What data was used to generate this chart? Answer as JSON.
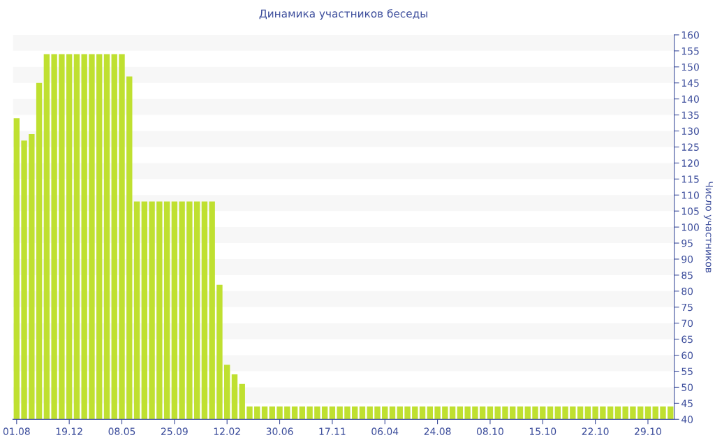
{
  "chart_data": {
    "type": "bar",
    "title": "Динамика участников беседы",
    "ylabel": "Число участников",
    "categories": [
      "01.08",
      null,
      null,
      null,
      null,
      null,
      null,
      "19.12",
      null,
      null,
      null,
      null,
      null,
      null,
      "08.05",
      null,
      null,
      null,
      null,
      null,
      null,
      "25.09",
      null,
      null,
      null,
      null,
      null,
      null,
      "12.02",
      null,
      null,
      null,
      null,
      null,
      null,
      "30.06",
      null,
      null,
      null,
      null,
      null,
      null,
      "17.11",
      null,
      null,
      null,
      null,
      null,
      null,
      "06.04",
      null,
      null,
      null,
      null,
      null,
      null,
      "24.08",
      null,
      null,
      null,
      null,
      null,
      null,
      "08.10",
      null,
      null,
      null,
      null,
      null,
      null,
      "15.10",
      null,
      null,
      null,
      null,
      null,
      null,
      "22.10",
      null,
      null,
      null,
      null,
      null,
      null,
      "29.10",
      null,
      null,
      null
    ],
    "values": [
      134,
      127,
      129,
      145,
      154,
      154,
      154,
      154,
      154,
      154,
      154,
      154,
      154,
      154,
      154,
      147,
      108,
      108,
      108,
      108,
      108,
      108,
      108,
      108,
      108,
      108,
      108,
      82,
      57,
      54,
      51,
      44,
      44,
      44,
      44,
      44,
      44,
      44,
      44,
      44,
      44,
      44,
      44,
      44,
      44,
      44,
      44,
      44,
      44,
      44,
      44,
      44,
      44,
      44,
      44,
      44,
      44,
      44,
      44,
      44,
      44,
      44,
      44,
      44,
      44,
      44,
      44,
      44,
      44,
      44,
      44,
      44,
      44,
      44,
      44,
      44,
      44,
      44,
      44,
      44,
      44,
      44,
      44,
      44,
      44,
      44,
      44,
      44
    ],
    "color": "#bfe030",
    "ylim": [
      40,
      160
    ],
    "yticks": [
      40,
      45,
      50,
      55,
      60,
      65,
      70,
      75,
      80,
      85,
      90,
      95,
      100,
      105,
      110,
      115,
      120,
      125,
      130,
      135,
      140,
      145,
      150,
      155,
      160
    ]
  }
}
